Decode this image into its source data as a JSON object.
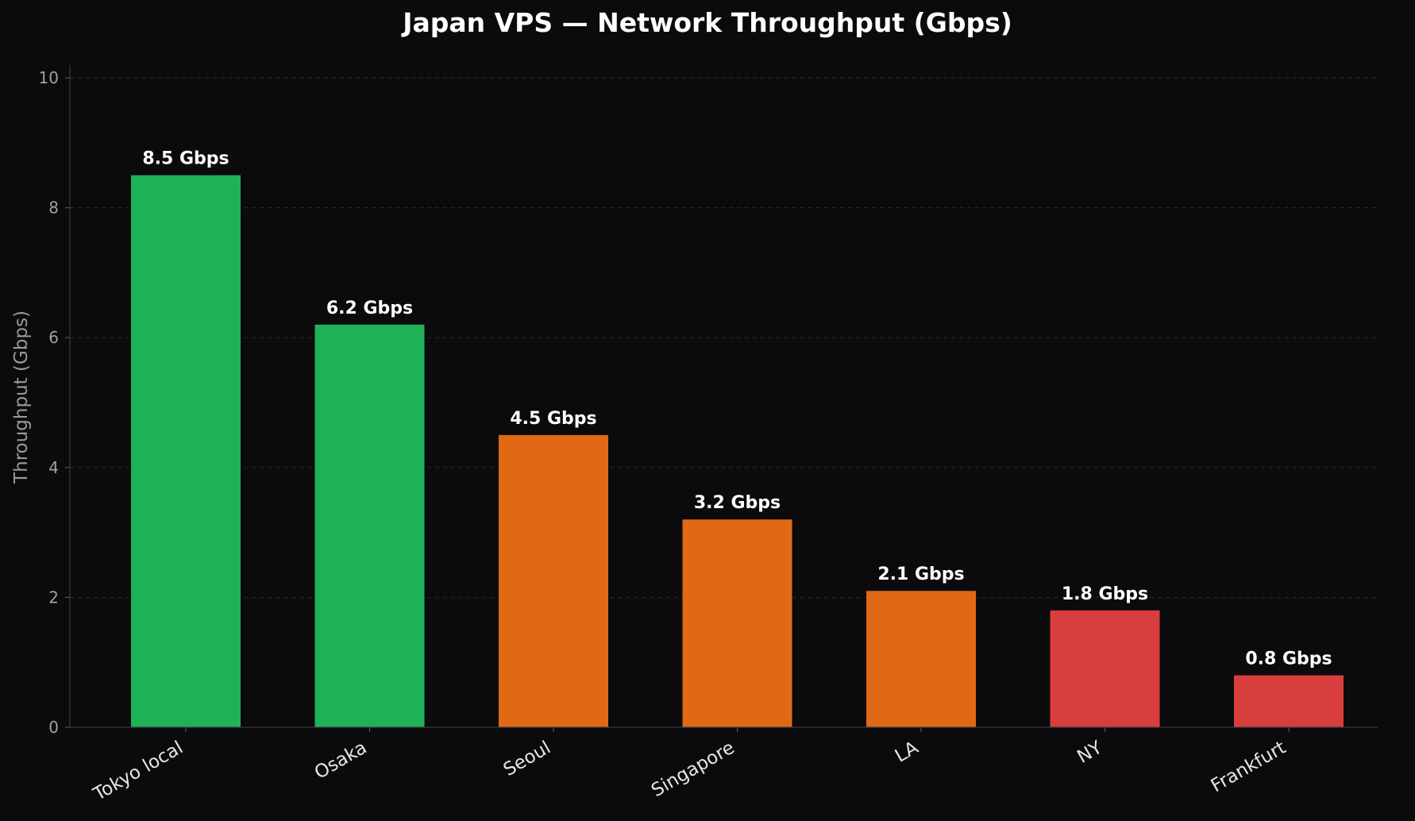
{
  "chart_data": {
    "type": "bar",
    "title": "Japan VPS — Network Throughput (Gbps)",
    "xlabel": "",
    "ylabel": "Throughput (Gbps)",
    "ylim": [
      0,
      10
    ],
    "yticks": [
      0,
      2,
      4,
      6,
      8,
      10
    ],
    "grid": true,
    "categories": [
      "Tokyo local",
      "Osaka",
      "Seoul",
      "Singapore",
      "LA",
      "NY",
      "Frankfurt"
    ],
    "values": [
      8.5,
      6.2,
      4.5,
      3.2,
      2.1,
      1.8,
      0.8
    ],
    "data_labels": [
      "8.5 Gbps",
      "6.2 Gbps",
      "4.5 Gbps",
      "3.2 Gbps",
      "2.1 Gbps",
      "1.8 Gbps",
      "0.8 Gbps"
    ],
    "bar_colors": [
      "#1fb257",
      "#1fb257",
      "#e06915",
      "#e06915",
      "#e06915",
      "#d93e3e",
      "#d93e3e"
    ]
  }
}
